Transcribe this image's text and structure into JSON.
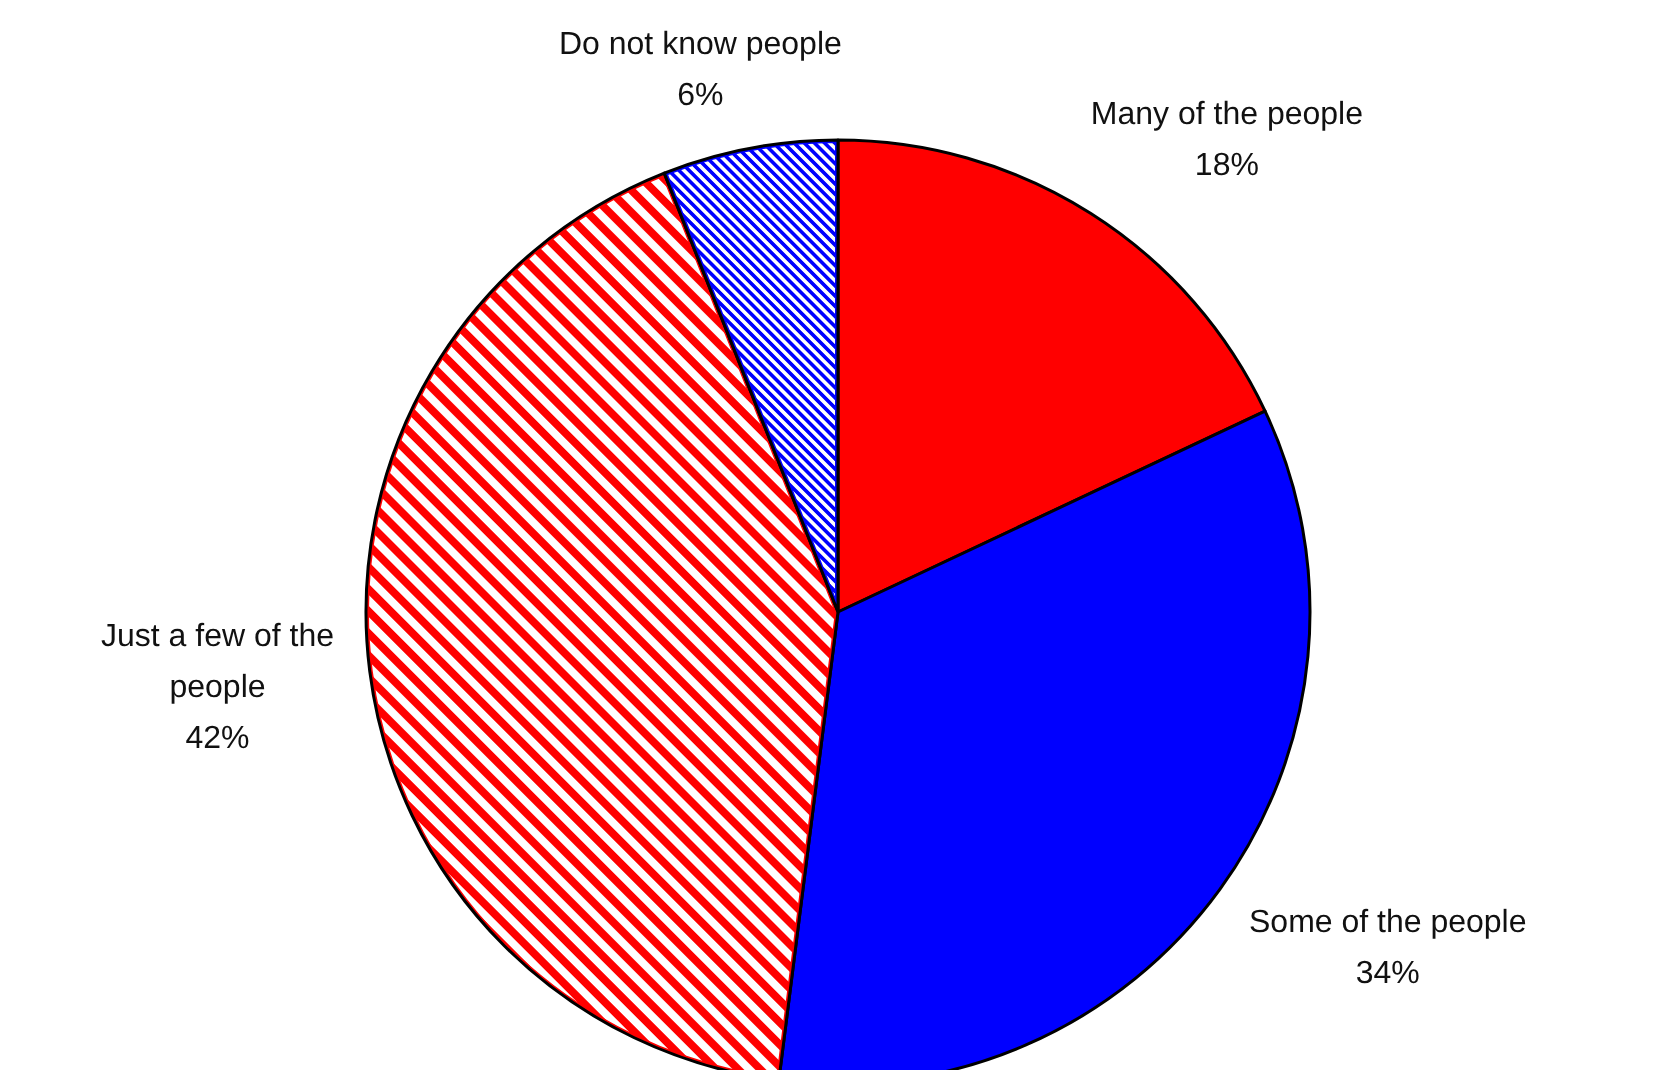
{
  "chart_data": {
    "type": "pie",
    "categories": [
      "Many of the people",
      "Some of the people",
      "Just a few of the people",
      "Do not know people"
    ],
    "values": [
      18,
      34,
      42,
      6
    ],
    "colors": [
      "#ff0000",
      "#0000ff",
      "#ff0000",
      "#0000ff"
    ],
    "value_labels": [
      "18%",
      "34%",
      "42%",
      "6%"
    ],
    "legend": false
  }
}
